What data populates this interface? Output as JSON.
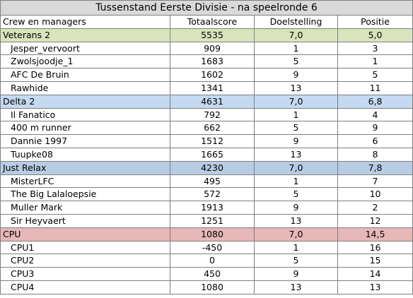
{
  "title": "Tussenstand Eerste Divisie - na speelronde 6",
  "columns": [
    "Crew en managers",
    "Totaalscore",
    "Doelstelling",
    "Positie"
  ],
  "teams": [
    {
      "name": "Veterans 2",
      "score": "5535",
      "goal": "7,0",
      "position": "5,0",
      "color": "#d8e4bc",
      "members": [
        {
          "name": "Jesper_vervoort",
          "score": "909",
          "goal": "1",
          "position": "3"
        },
        {
          "name": "Zwolsjoodje_1",
          "score": "1683",
          "goal": "5",
          "position": "1"
        },
        {
          "name": "AFC De Bruin",
          "score": "1602",
          "goal": "9",
          "position": "5"
        },
        {
          "name": "Rawhide",
          "score": "1341",
          "goal": "13",
          "position": "11"
        }
      ]
    },
    {
      "name": "Delta 2",
      "score": "4631",
      "goal": "7,0",
      "position": "6,8",
      "color": "#c5d9f1",
      "members": [
        {
          "name": "Il Fanatico",
          "score": "792",
          "goal": "1",
          "position": "4"
        },
        {
          "name": "400 m runner",
          "score": "662",
          "goal": "5",
          "position": "9"
        },
        {
          "name": "Dannie 1997",
          "score": "1512",
          "goal": "9",
          "position": "6"
        },
        {
          "name": "Tuupke08",
          "score": "1665",
          "goal": "13",
          "position": "8"
        }
      ]
    },
    {
      "name": "Just Relax",
      "score": "4230",
      "goal": "7,0",
      "position": "7,8",
      "color": "#b8cce4",
      "members": [
        {
          "name": "MisterLFC",
          "score": "495",
          "goal": "1",
          "position": "7"
        },
        {
          "name": "The Big Lalaloepsie",
          "score": "572",
          "goal": "5",
          "position": "10"
        },
        {
          "name": "Muller Mark",
          "score": "1913",
          "goal": "9",
          "position": "2"
        },
        {
          "name": "Sir Heyvaert",
          "score": "1251",
          "goal": "13",
          "position": "12"
        }
      ]
    },
    {
      "name": "CPU",
      "score": "1080",
      "goal": "7,0",
      "position": "14,5",
      "color": "#e6b8b7",
      "members": [
        {
          "name": "CPU1",
          "score": "-450",
          "goal": "1",
          "position": "16"
        },
        {
          "name": "CPU2",
          "score": "0",
          "goal": "5",
          "position": "15"
        },
        {
          "name": "CPU3",
          "score": "450",
          "goal": "9",
          "position": "14"
        },
        {
          "name": "CPU4",
          "score": "1080",
          "goal": "13",
          "position": "13"
        }
      ]
    }
  ]
}
